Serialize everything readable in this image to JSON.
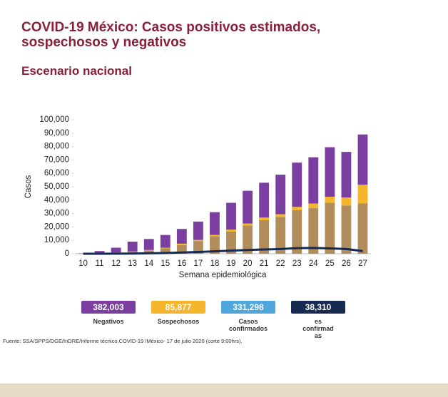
{
  "chart_data": {
    "type": "stacked-bar",
    "title": "COVID-19 México: Casos positivos estimados,\nsospechosos y negativos",
    "subtitle": "Escenario nacional",
    "y_label": "Casos",
    "x_label": "Semana epidemiológica",
    "source": "Fuente: SSA/SPPS/DGE/InDRE/Informe técnico.COVID-19 /México- 17 de julio 2020 (corte 9:00hrs).",
    "categories": [
      "10",
      "11",
      "12",
      "13",
      "14",
      "15",
      "16",
      "17",
      "18",
      "19",
      "20",
      "21",
      "22",
      "23",
      "24",
      "25",
      "26",
      "27"
    ],
    "ylim": [
      0,
      100000
    ],
    "yticks": [
      0,
      {
        "value": 10000,
        "label": "10,000"
      },
      {
        "value": 20000,
        "label": "20,000"
      },
      {
        "value": 30000,
        "label": "30,000"
      },
      {
        "value": 40000,
        "label": "40,000"
      },
      {
        "value": 50000,
        "label": "50,000"
      },
      {
        "value": 60000,
        "label": "60,000"
      },
      {
        "value": 70000,
        "label": "70,000"
      },
      {
        "value": 80000,
        "label": "80,000"
      },
      {
        "value": 90000,
        "label": "90,000"
      },
      {
        "value": 100000,
        "label": "100,000"
      }
    ],
    "series": [
      {
        "name": "Casos\nconfirmados",
        "color": "#b08d5a",
        "values": [
          100,
          300,
          800,
          1500,
          2500,
          4000,
          6500,
          9500,
          13000,
          16500,
          21000,
          25000,
          27500,
          32500,
          34000,
          38000,
          36000,
          37500
        ]
      },
      {
        "name": "Sospechosos",
        "color": "#f5b52c",
        "values": [
          0,
          0,
          100,
          200,
          300,
          500,
          1000,
          800,
          1000,
          1500,
          1500,
          2000,
          2000,
          2500,
          3500,
          4500,
          6000,
          14000
        ]
      },
      {
        "name": "Negativos",
        "color": "#7a3fa0",
        "values": [
          200,
          1700,
          3600,
          7300,
          8200,
          9500,
          11000,
          13700,
          17000,
          20000,
          24500,
          26000,
          29500,
          33000,
          34500,
          37000,
          34000,
          37500
        ]
      },
      {
        "name": "es\nconfirmad\nas",
        "color": "#172a52",
        "line": true,
        "values": [
          0,
          0,
          50,
          150,
          300,
          500,
          900,
          1300,
          1800,
          2300,
          2800,
          3200,
          3500,
          4200,
          4300,
          4000,
          3500,
          2000
        ]
      }
    ],
    "totals": [
      {
        "series": 2,
        "color": "#7a3fa0",
        "value": 382003,
        "label": "382,003"
      },
      {
        "series": 1,
        "color": "#f5b52c",
        "value": 85877,
        "label": "85,877"
      },
      {
        "series": 0,
        "color": "#4ea6dc",
        "value": 331298,
        "label": "331,298"
      },
      {
        "series": 3,
        "color": "#172a52",
        "value": 38310,
        "label": "38,310"
      }
    ]
  }
}
